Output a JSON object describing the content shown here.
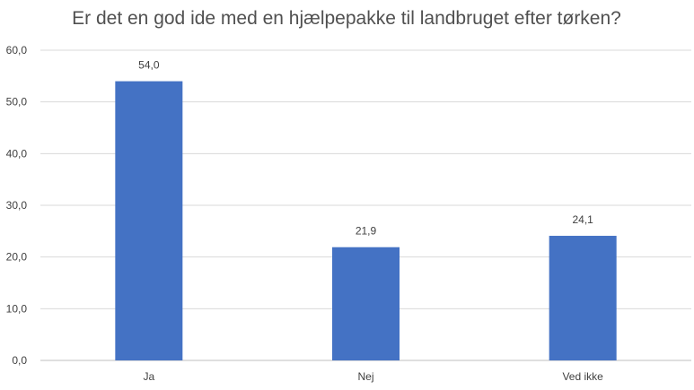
{
  "chart_data": {
    "type": "bar",
    "title": "Er det en god ide med en hjælpepakke til landbruget efter tørken?",
    "categories": [
      "Ja",
      "Nej",
      "Ved ikke"
    ],
    "values": [
      54.0,
      21.9,
      24.1
    ],
    "data_labels": [
      "54,0",
      "21,9",
      "24,1"
    ],
    "y_ticks": [
      0,
      10,
      20,
      30,
      40,
      50,
      60
    ],
    "y_tick_labels": [
      "0,0",
      "10,0",
      "20,0",
      "30,0",
      "40,0",
      "50,0",
      "60,0"
    ],
    "ylim": [
      0,
      60
    ],
    "grid": true,
    "legend": "none",
    "colors": {
      "bar": "#4472c4"
    }
  }
}
